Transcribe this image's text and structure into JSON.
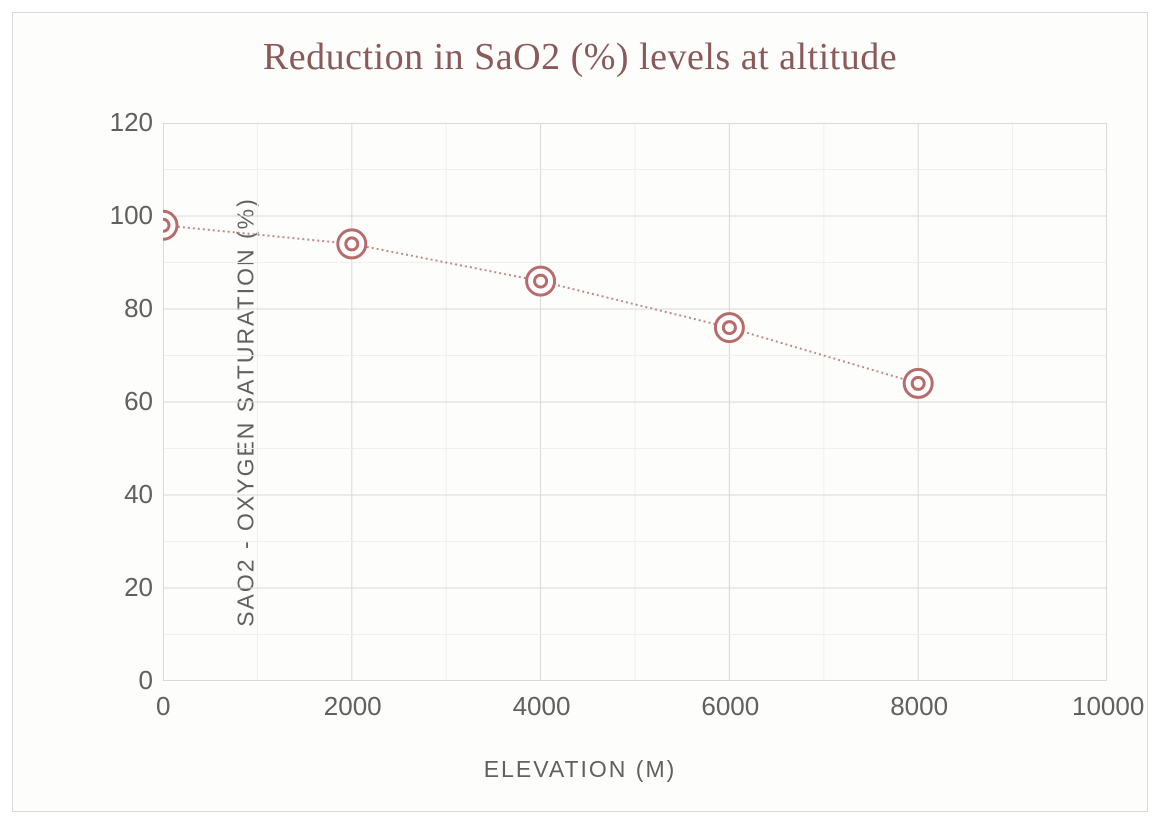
{
  "chart": {
    "type": "line-scatter",
    "title": "Reduction in SaO2 (%) levels at altitude",
    "title_color": "#8a5a5a",
    "title_fontsize": 38,
    "title_font": "Georgia, serif",
    "xlabel": "ELEVATION (M)",
    "ylabel": "SAO2 - OXYGEN SATURATION (%)",
    "axis_label_color": "#606060",
    "axis_label_fontsize": 23,
    "axis_label_font": "Gill Sans, Segoe UI, Arial, sans-serif",
    "axis_label_letter_spacing": 2,
    "tick_label_color": "#606060",
    "tick_label_fontsize": 26,
    "tick_label_font": "Arial, sans-serif",
    "background_color": "#fdfdfc",
    "frame_border_color": "#d9d9d9",
    "grid_major_color": "#d9d9d9",
    "grid_minor_color": "#efefef",
    "grid_major_width": 1,
    "grid_minor_width": 1,
    "xlim": [
      0,
      10000
    ],
    "ylim": [
      0,
      120
    ],
    "xtick_step_major": 2000,
    "xtick_step_minor": 1000,
    "ytick_step_major": 20,
    "ytick_step_minor": 10,
    "xticks": [
      0,
      2000,
      4000,
      6000,
      8000,
      10000
    ],
    "yticks": [
      0,
      20,
      40,
      60,
      80,
      100,
      120
    ],
    "series": {
      "x": [
        0,
        2000,
        4000,
        6000,
        8000
      ],
      "y": [
        98,
        94,
        86,
        76,
        64
      ],
      "line_color": "#c08a8a",
      "line_width": 2,
      "line_dash": "2,3",
      "marker_shape": "donut-ring",
      "marker_outer_radius": 14,
      "marker_inner_radius": 6,
      "marker_ring_width": 3,
      "marker_color": "#b86b6b",
      "marker_fill": "#ffffff"
    }
  }
}
